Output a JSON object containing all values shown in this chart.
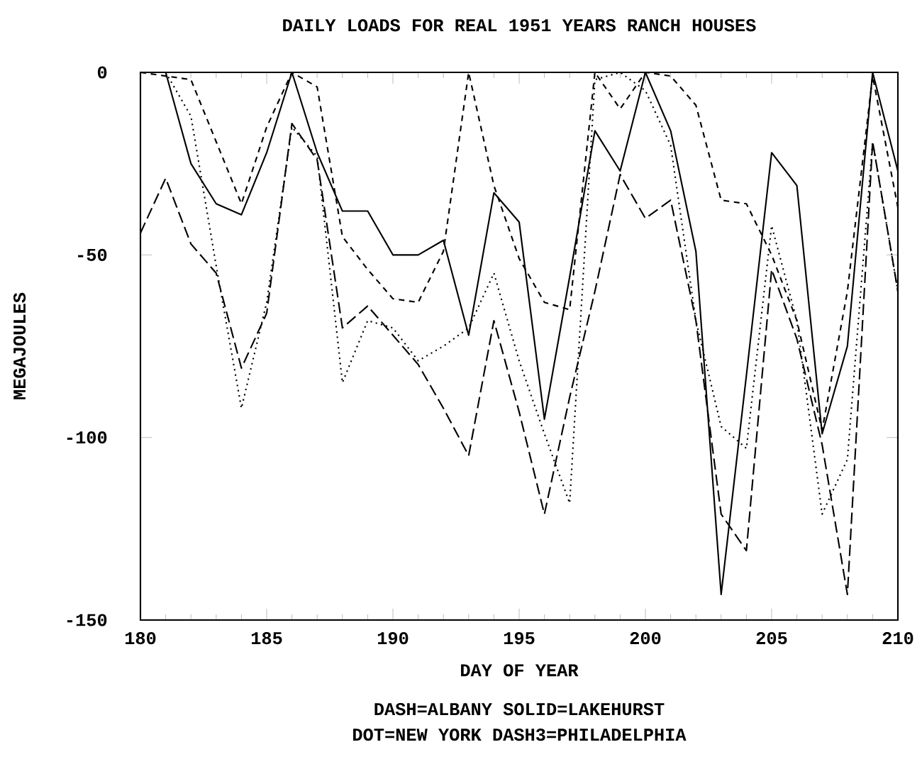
{
  "chart_data": {
    "type": "line",
    "title": "DAILY LOADS FOR REAL 1951 YEARS RANCH HOUSES",
    "xlabel": "DAY OF YEAR",
    "ylabel": "MEGAJOULES",
    "x": [
      180,
      181,
      182,
      183,
      184,
      185,
      186,
      187,
      188,
      189,
      190,
      191,
      192,
      193,
      194,
      195,
      196,
      197,
      198,
      199,
      200,
      201,
      202,
      203,
      204,
      205,
      206,
      207,
      208,
      209,
      210
    ],
    "xlim": [
      180,
      210
    ],
    "ylim": [
      -150,
      0
    ],
    "xticks": [
      180,
      185,
      190,
      195,
      200,
      205,
      210
    ],
    "yticks": [
      -150,
      -100,
      -50,
      0
    ],
    "series": [
      {
        "color": "#000000",
        "line_style": "dashed",
        "values": [
          0,
          -1,
          -2,
          -19,
          -36,
          -15,
          0,
          -4,
          -45,
          -54,
          -62,
          -63,
          -49,
          0,
          -31,
          -51,
          -63,
          -65,
          0,
          -10,
          0,
          -1,
          -9,
          -35,
          -36,
          -50,
          -68,
          -98,
          -60,
          -1,
          -37
        ]
      },
      {
        "color": "#000000",
        "line_style": "solid",
        "values": [
          0,
          0,
          -25,
          -36,
          -39,
          -22,
          0,
          -22,
          -38,
          -38,
          -50,
          -50,
          -46,
          -72,
          -33,
          -41,
          -95,
          -56,
          -16,
          -27,
          0,
          -16,
          -49,
          -143,
          -83,
          -22,
          -31,
          -99,
          -75,
          0,
          -27
        ]
      },
      {
        "color": "#000000",
        "line_style": "dotted",
        "values": [
          null,
          0,
          -12,
          -53,
          -92,
          -63,
          -15,
          -23,
          -85,
          -68,
          -70,
          -79,
          -75,
          -70,
          -55,
          -79,
          -99,
          -118,
          -2,
          0,
          -5,
          -20,
          -68,
          -97,
          -103,
          -42,
          -68,
          -121,
          -106,
          -19,
          -60
        ]
      },
      {
        "color": "#000000",
        "line_style": "dashed",
        "values": [
          -44,
          -29,
          -47,
          -55,
          -81,
          -66,
          -14,
          -24,
          -70,
          -64,
          -72,
          -80,
          -92,
          -105,
          -68,
          -93,
          -121,
          -89,
          -60,
          -28,
          -40,
          -35,
          -68,
          -121,
          -131,
          -54,
          -73,
          -102,
          -143,
          -19,
          -60
        ]
      }
    ],
    "annotations": [
      "DASH=ALBANY  SOLID=LAKEHURST",
      "DOT=NEW YORK  DASH3=PHILADELPHIA"
    ]
  }
}
